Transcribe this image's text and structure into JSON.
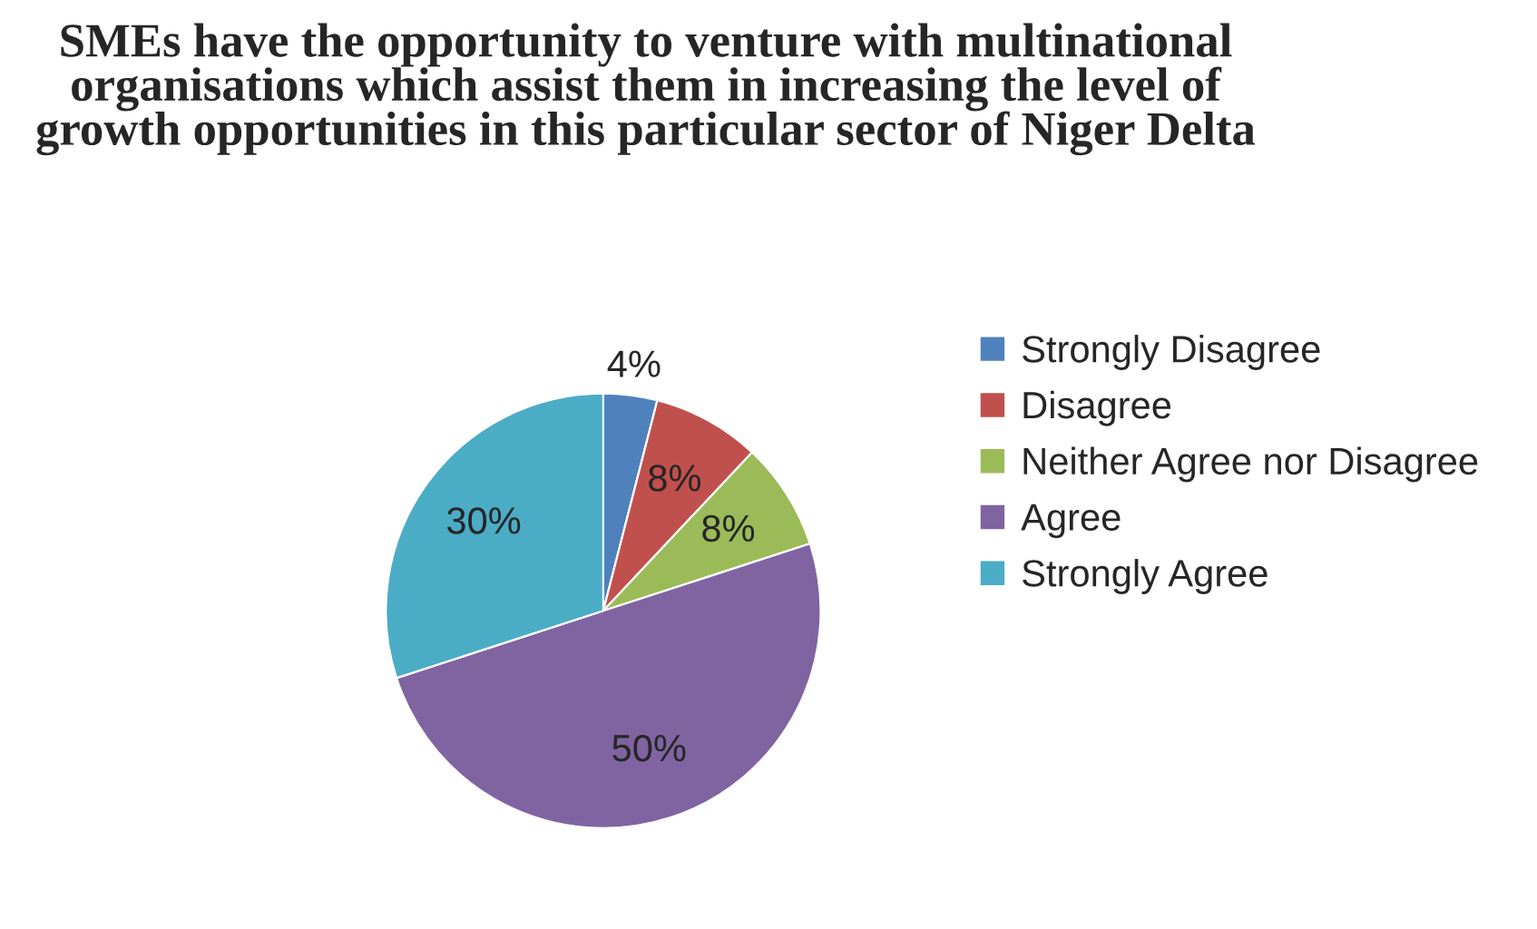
{
  "chart_data": {
    "type": "pie",
    "title": "SMEs have the opportunity to venture with multinational organisations which assist them in increasing the level of growth opportunities in this particular sector of Niger Delta",
    "categories": [
      "Strongly Disagree",
      "Disagree",
      "Neither Agree nor Disagree",
      "Agree",
      "Strongly Agree"
    ],
    "values": [
      4,
      8,
      8,
      50,
      30
    ],
    "colors": [
      "#4f81bd",
      "#c0504d",
      "#9bbb59",
      "#8064a2",
      "#4bacc6"
    ],
    "value_labels": [
      "4%",
      "8%",
      "8%",
      "50%",
      "30%"
    ],
    "legend": "right"
  }
}
